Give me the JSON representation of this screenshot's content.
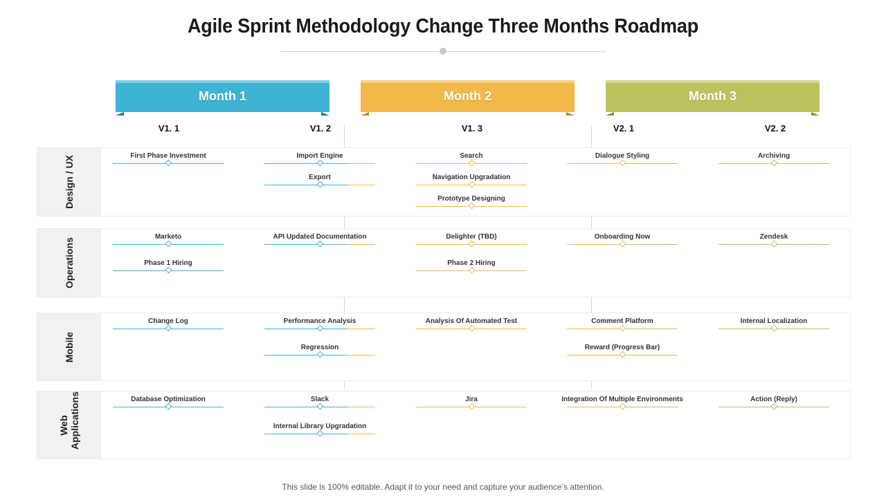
{
  "title": "Agile Sprint Methodology  Change Three Months Roadmap",
  "months": [
    {
      "label": "Month 1",
      "color": "#3eb3d3"
    },
    {
      "label": "Month 2",
      "color": "#f3b84a"
    },
    {
      "label": "Month 3",
      "color": "#bcc35e"
    }
  ],
  "versions": [
    "V1. 1",
    "V1. 2",
    "V1. 3",
    "V2. 1",
    "V2. 2"
  ],
  "colors": {
    "blue": "#3eb3d3",
    "orange": "#f3b84a",
    "olive": "#bcc35e"
  },
  "rows": [
    {
      "label": "Design / UX",
      "columns": [
        [
          "First Phase Investment"
        ],
        [
          "Import Engine",
          "Export"
        ],
        [
          "Search",
          "Navigation Upgradation",
          "Prototype Designing"
        ],
        [
          "Dialogue Styling"
        ],
        [
          "Archiving"
        ]
      ]
    },
    {
      "label": "Operations",
      "columns": [
        [
          "Marketo",
          "Phase 1 Hiring"
        ],
        [
          "API Updated Documentation"
        ],
        [
          "Delighter (TBD)",
          "Phase 2 Hiring"
        ],
        [
          "Onboarding Now"
        ],
        [
          "Zendesk"
        ]
      ]
    },
    {
      "label": "Mobile",
      "columns": [
        [
          "Change Log"
        ],
        [
          "Performance Analysis",
          "Regression"
        ],
        [
          "Analysis Of Automated Test"
        ],
        [
          "Comment Platform",
          "Reward (Progress Bar)"
        ],
        [
          "Internal Localization"
        ]
      ]
    },
    {
      "label": "Web Applications",
      "columns": [
        [
          "Database Optimization"
        ],
        [
          "Slack",
          "Internal Library Upgradation"
        ],
        [
          "Jira"
        ],
        [
          "Integration Of Multiple Environments"
        ],
        [
          "Action (Reply)"
        ]
      ]
    }
  ],
  "footer": "This slide is 100% editable. Adapt it to your need and capture your audience’s attention."
}
